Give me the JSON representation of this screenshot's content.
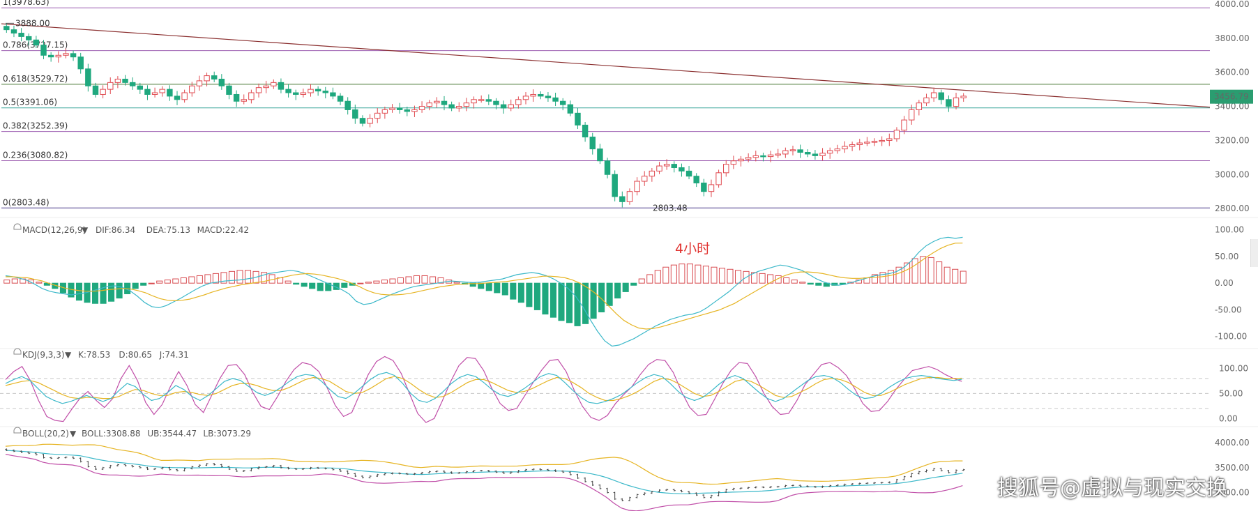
{
  "chart_data": [
    {
      "id": "main",
      "type": "candlestick",
      "ylim": [
        2780,
        4000
      ],
      "y_ticks": [
        "4000.00",
        "3800.00",
        "3600.00",
        "3400.00",
        "3200.00",
        "3000.00",
        "2800.00"
      ],
      "fib_levels": [
        {
          "label": "1(3978.63)",
          "value": 3978.63,
          "color": "#9c5bb0"
        },
        {
          "label": "0.786(3727.15)",
          "value": 3727.15,
          "color": "#9c5bb0"
        },
        {
          "label": "0.618(3529.72)",
          "value": 3529.72,
          "color": "#4a7a36"
        },
        {
          "label": "0.5(3391.06)",
          "value": 3391.06,
          "color": "#3aa59a"
        },
        {
          "label": "0.382(3252.39)",
          "value": 3252.39,
          "color": "#9c5bb0"
        },
        {
          "label": "0.236(3080.82)",
          "value": 3080.82,
          "color": "#9c5bb0"
        },
        {
          "label": "0(2803.48)",
          "value": 2803.48,
          "color": "#4b3c8c"
        }
      ],
      "annotations": [
        {
          "label": "3888.00",
          "value": 3888.0
        },
        {
          "label": "2803.48",
          "value": 2803.48
        }
      ],
      "current_price": "3456.79",
      "trendline": {
        "start": 3885,
        "end": 3395
      },
      "close_path": [
        3850,
        3830,
        3810,
        3790,
        3760,
        3700,
        3690,
        3700,
        3710,
        3690,
        3620,
        3520,
        3470,
        3500,
        3540,
        3560,
        3540,
        3520,
        3500,
        3470,
        3480,
        3500,
        3460,
        3440,
        3480,
        3520,
        3550,
        3580,
        3560,
        3520,
        3470,
        3430,
        3440,
        3480,
        3510,
        3520,
        3540,
        3500,
        3480,
        3470,
        3480,
        3500,
        3490,
        3480,
        3460,
        3430,
        3380,
        3330,
        3300,
        3330,
        3360,
        3380,
        3390,
        3380,
        3370,
        3380,
        3400,
        3420,
        3430,
        3410,
        3390,
        3400,
        3420,
        3440,
        3440,
        3430,
        3410,
        3390,
        3410,
        3440,
        3460,
        3470,
        3460,
        3450,
        3430,
        3410,
        3360,
        3290,
        3220,
        3150,
        3080,
        3000,
        2870,
        2840,
        2900,
        2960,
        2990,
        3020,
        3050,
        3060,
        3040,
        3020,
        2990,
        2950,
        2900,
        2940,
        3010,
        3060,
        3080,
        3090,
        3100,
        3110,
        3105,
        3115,
        3120,
        3140,
        3145,
        3130,
        3120,
        3110,
        3125,
        3140,
        3150,
        3165,
        3175,
        3185,
        3190,
        3195,
        3200,
        3210,
        3260,
        3320,
        3380,
        3420,
        3450,
        3480,
        3440,
        3400,
        3450,
        3460
      ]
    },
    {
      "id": "macd",
      "type": "line+bar",
      "label": "MACD(12,26,9)",
      "legend": [
        {
          "label": "DIF:86.34",
          "color": "#3bb8c9"
        },
        {
          "label": "DEA:75.13",
          "color": "#e6b422"
        },
        {
          "label": "MACD:22.42",
          "color": "#d84b50"
        }
      ],
      "ylim": [
        -120,
        110
      ],
      "y_ticks": [
        "100.00",
        "50.00",
        "0.00",
        "-50.00",
        "-100.00"
      ],
      "dif": [
        14,
        12,
        9,
        5,
        -2,
        -10,
        -15,
        -18,
        -20,
        -22,
        -20,
        -18,
        -14,
        -10,
        -6,
        -5,
        -8,
        -14,
        -24,
        -36,
        -44,
        -46,
        -42,
        -35,
        -28,
        -20,
        -12,
        -5,
        0,
        2,
        4,
        5,
        6,
        8,
        10,
        14,
        18,
        20,
        22,
        24,
        22,
        18,
        12,
        6,
        0,
        -6,
        -12,
        -20,
        -34,
        -40,
        -38,
        -32,
        -26,
        -20,
        -15,
        -10,
        -6,
        -4,
        -2,
        0,
        2,
        4,
        3,
        2,
        1,
        2,
        4,
        6,
        8,
        12,
        16,
        18,
        20,
        18,
        14,
        8,
        0,
        -10,
        -24,
        -44,
        -68,
        -90,
        -108,
        -118,
        -116,
        -110,
        -104,
        -96,
        -88,
        -80,
        -74,
        -68,
        -64,
        -60,
        -58,
        -54,
        -46,
        -36,
        -26,
        -16,
        -4,
        8,
        16,
        22,
        26,
        30,
        34,
        32,
        28,
        24,
        16,
        8,
        2,
        -2,
        -4,
        -2,
        2,
        6,
        10,
        14,
        16,
        18,
        22,
        30,
        42,
        58,
        70,
        78,
        84,
        86,
        84,
        86
      ],
      "dea": [
        12,
        12,
        11,
        10,
        7,
        4,
        -1,
        -5,
        -9,
        -12,
        -14,
        -15,
        -15,
        -14,
        -12,
        -11,
        -10,
        -11,
        -14,
        -18,
        -24,
        -29,
        -32,
        -33,
        -32,
        -30,
        -26,
        -22,
        -17,
        -13,
        -9,
        -6,
        -3,
        -1,
        1,
        3,
        6,
        9,
        12,
        15,
        17,
        18,
        17,
        15,
        12,
        9,
        5,
        0,
        -6,
        -13,
        -18,
        -21,
        -22,
        -22,
        -21,
        -19,
        -16,
        -13,
        -10,
        -7,
        -5,
        -3,
        -2,
        -1,
        -1,
        0,
        1,
        2,
        3,
        5,
        7,
        9,
        11,
        13,
        13,
        12,
        10,
        6,
        0,
        -8,
        -18,
        -30,
        -44,
        -58,
        -70,
        -78,
        -84,
        -86,
        -85,
        -82,
        -78,
        -74,
        -70,
        -66,
        -62,
        -58,
        -54,
        -50,
        -44,
        -38,
        -30,
        -22,
        -14,
        -6,
        2,
        9,
        15,
        19,
        21,
        21,
        20,
        18,
        15,
        12,
        10,
        9,
        9,
        10,
        11,
        12,
        14,
        17,
        22,
        29,
        38,
        48,
        57,
        65,
        71,
        75,
        75.13
      ],
      "hist": [
        6,
        8,
        8,
        6,
        2,
        -4,
        -10,
        -18,
        -26,
        -32,
        -36,
        -38,
        -38,
        -34,
        -28,
        -20,
        -10,
        -4,
        0,
        4,
        6,
        8,
        10,
        12,
        14,
        16,
        18,
        20,
        22,
        24,
        24,
        22,
        20,
        16,
        10,
        4,
        -2,
        -6,
        -10,
        -14,
        -14,
        -12,
        -8,
        -4,
        0,
        2,
        4,
        6,
        8,
        10,
        12,
        14,
        14,
        12,
        10,
        6,
        2,
        -2,
        -6,
        -10,
        -14,
        -18,
        -22,
        -30,
        -36,
        -44,
        -50,
        -58,
        -64,
        -70,
        -74,
        -80,
        -76,
        -66,
        -54,
        -42,
        -28,
        -16,
        -4,
        8,
        16,
        24,
        30,
        34,
        36,
        36,
        34,
        32,
        30,
        28,
        26,
        24,
        22,
        20,
        18,
        16,
        14,
        10,
        6,
        2,
        -2,
        -4,
        -6,
        -4,
        -2,
        2,
        6,
        10,
        16,
        20,
        24,
        30,
        38,
        46,
        50,
        48,
        40,
        30,
        26,
        22.42
      ]
    },
    {
      "id": "kdj",
      "type": "line",
      "label": "KDJ(9,3,3)",
      "legend": [
        {
          "label": "K:78.53",
          "color": "#3bb8c9"
        },
        {
          "label": "D:80.65",
          "color": "#e6b422"
        },
        {
          "label": "J:74.31",
          "color": "#c04ea8"
        }
      ],
      "ylim": [
        -8,
        112
      ],
      "y_ticks": [
        "100.00",
        "50.00",
        "0.00"
      ],
      "guide_levels": [
        80,
        50,
        20
      ],
      "k": [
        70,
        78,
        84,
        76,
        60,
        44,
        36,
        30,
        34,
        40,
        46,
        40,
        34,
        40,
        56,
        70,
        64,
        48,
        36,
        40,
        52,
        66,
        58,
        44,
        36,
        46,
        60,
        74,
        80,
        76,
        64,
        52,
        46,
        52,
        62,
        74,
        84,
        88,
        86,
        74,
        58,
        44,
        40,
        50,
        64,
        78,
        88,
        92,
        86,
        70,
        50,
        36,
        32,
        40,
        54,
        70,
        82,
        88,
        84,
        72,
        58,
        48,
        44,
        50,
        60,
        72,
        84,
        90,
        86,
        72,
        56,
        42,
        32,
        30,
        34,
        40,
        48,
        60,
        72,
        82,
        88,
        84,
        70,
        54,
        42,
        36,
        42,
        54,
        68,
        80,
        86,
        80,
        66,
        52,
        40,
        34,
        40,
        52,
        64,
        76,
        84,
        86,
        82,
        72,
        58,
        46,
        40,
        42,
        50,
        62,
        72,
        80,
        84,
        86,
        84,
        80,
        78,
        76,
        78.53
      ],
      "d": [
        66,
        70,
        74,
        76,
        72,
        64,
        56,
        48,
        42,
        40,
        42,
        42,
        40,
        40,
        44,
        52,
        58,
        56,
        50,
        46,
        46,
        52,
        54,
        52,
        48,
        46,
        50,
        58,
        66,
        70,
        70,
        66,
        60,
        56,
        56,
        62,
        70,
        78,
        82,
        80,
        74,
        64,
        54,
        50,
        52,
        60,
        70,
        80,
        84,
        80,
        70,
        58,
        48,
        42,
        44,
        52,
        62,
        72,
        78,
        78,
        72,
        64,
        56,
        52,
        54,
        60,
        68,
        76,
        82,
        80,
        72,
        62,
        50,
        42,
        36,
        36,
        40,
        46,
        54,
        64,
        74,
        80,
        78,
        70,
        60,
        50,
        44,
        46,
        54,
        64,
        74,
        78,
        74,
        66,
        56,
        46,
        42,
        44,
        52,
        60,
        70,
        78,
        80,
        78,
        72,
        62,
        52,
        46,
        46,
        52,
        60,
        68,
        74,
        80,
        82,
        82,
        80,
        80,
        80.65
      ],
      "j": [
        78,
        94,
        104,
        76,
        36,
        4,
        -4,
        -6,
        18,
        40,
        54,
        36,
        22,
        40,
        80,
        106,
        76,
        32,
        8,
        28,
        64,
        94,
        66,
        28,
        12,
        46,
        80,
        106,
        108,
        88,
        52,
        24,
        18,
        44,
        74,
        98,
        112,
        108,
        94,
        62,
        26,
        4,
        12,
        50,
        88,
        114,
        124,
        116,
        90,
        50,
        10,
        -8,
        0,
        36,
        74,
        106,
        122,
        120,
        96,
        60,
        30,
        16,
        20,
        46,
        72,
        96,
        116,
        118,
        94,
        56,
        24,
        2,
        -4,
        6,
        30,
        48,
        64,
        88,
        108,
        118,
        116,
        92,
        54,
        22,
        6,
        8,
        38,
        70,
        96,
        112,
        110,
        84,
        50,
        24,
        8,
        10,
        36,
        68,
        88,
        108,
        112,
        102,
        86,
        60,
        30,
        14,
        16,
        34,
        58,
        78,
        96,
        100,
        104,
        98,
        88,
        80,
        74.31
      ]
    },
    {
      "id": "boll",
      "type": "line",
      "label": "BOLL(20,2)",
      "legend": [
        {
          "label": "BOLL:3308.88",
          "color": "#3bb8c9"
        },
        {
          "label": "UB:3544.47",
          "color": "#e6b422"
        },
        {
          "label": "LB:3073.29",
          "color": "#c04ea8"
        }
      ],
      "ylim": [
        2700,
        4100
      ],
      "y_ticks": [
        "4000.00",
        "3500.00",
        "3000.00"
      ]
    }
  ],
  "overlay": {
    "timeframe_label": "4小时",
    "watermark": "搜狐号@虚拟与现实交换"
  }
}
